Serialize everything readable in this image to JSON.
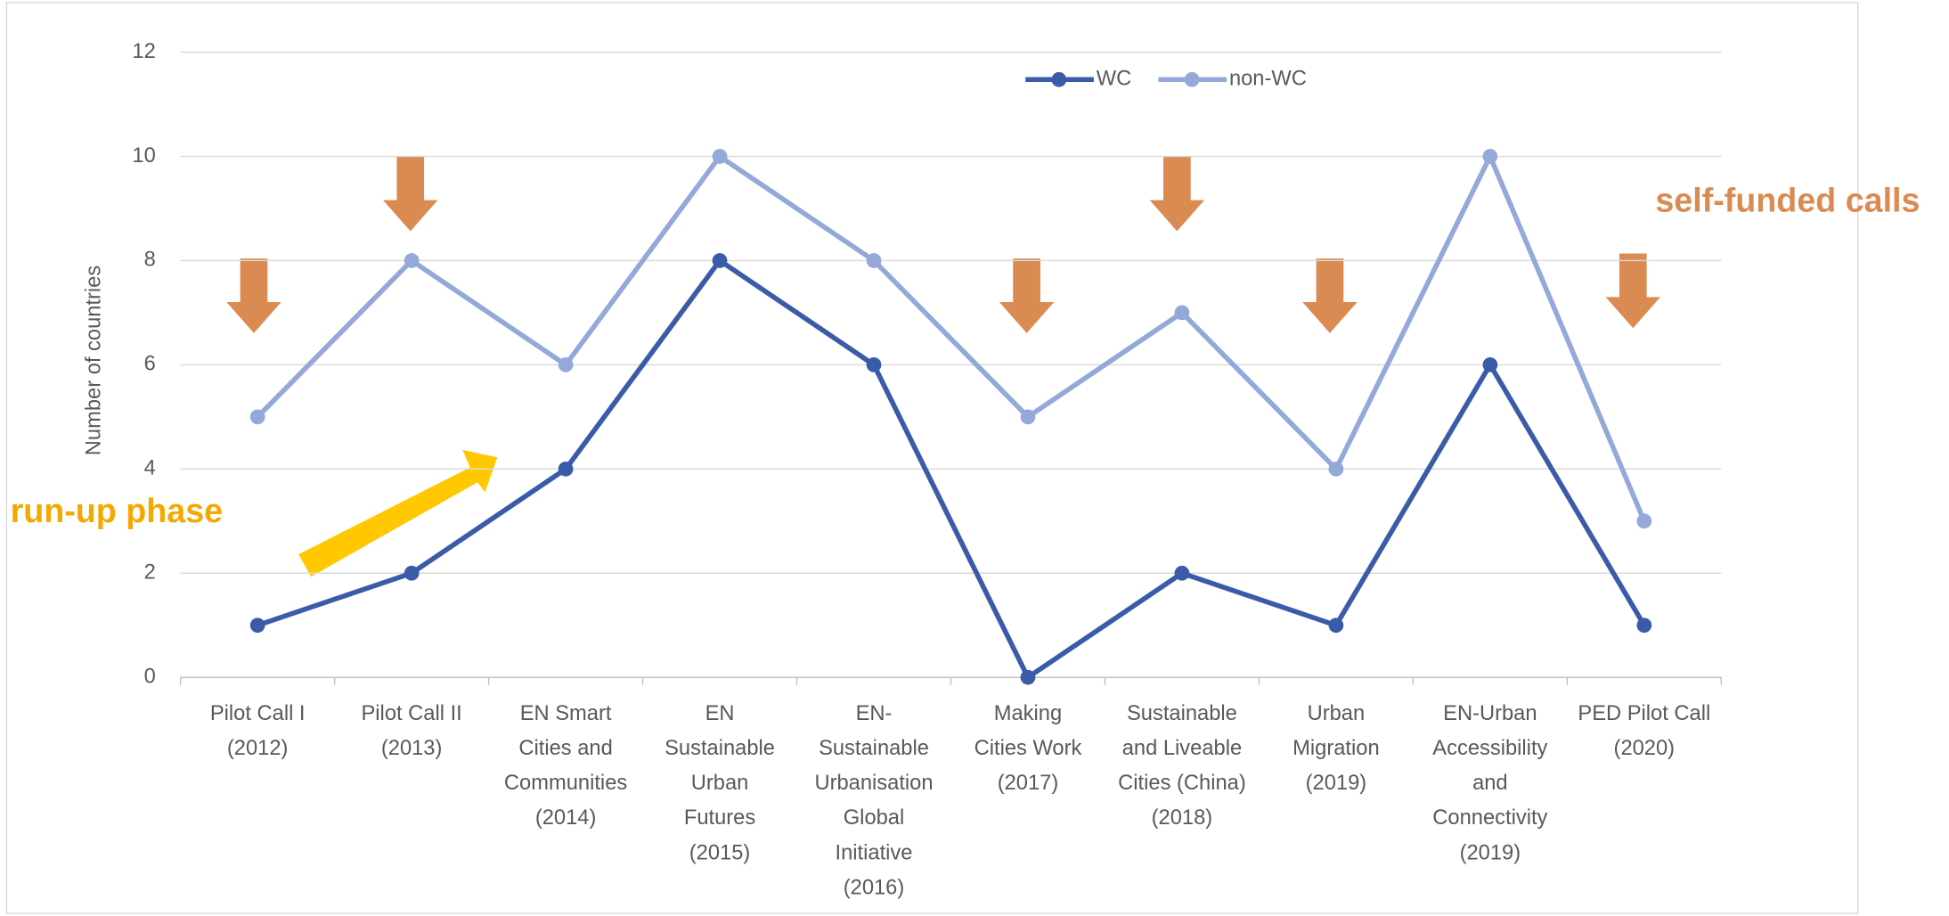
{
  "chart_data": {
    "type": "line",
    "y_label": "Number of countries",
    "categories": [
      [
        "Pilot Call I",
        "(2012)"
      ],
      [
        "Pilot Call II",
        "(2013)"
      ],
      [
        "EN Smart",
        "Cities and",
        "Communities",
        "(2014)"
      ],
      [
        "EN",
        "Sustainable",
        "Urban",
        "Futures",
        "(2015)"
      ],
      [
        "EN-",
        "Sustainable",
        "Urbanisation",
        "Global",
        "Initiative",
        "(2016)"
      ],
      [
        "Making",
        "Cities Work",
        "(2017)"
      ],
      [
        "Sustainable",
        "and Liveable",
        "Cities (China)",
        "(2018)"
      ],
      [
        "Urban",
        "Migration",
        "(2019)"
      ],
      [
        "EN-Urban",
        "Accessibility",
        "and",
        "Connectivity",
        "(2019)"
      ],
      [
        "PED Pilot Call",
        "(2020)"
      ]
    ],
    "series": [
      {
        "name": "WC",
        "color": "#3a5ca8",
        "values": [
          1,
          2,
          4,
          8,
          6,
          0,
          2,
          1,
          6,
          1
        ]
      },
      {
        "name": "non-WC",
        "color": "#94a8da",
        "values": [
          5,
          8,
          6,
          10,
          8,
          5,
          7,
          4,
          10,
          3
        ]
      }
    ],
    "ylim": [
      0,
      12
    ],
    "yticks": [
      0,
      2,
      4,
      6,
      8,
      10,
      12
    ],
    "grid": true,
    "legend": "top",
    "annotations": [
      "run-up phase",
      "self-funded calls"
    ]
  }
}
